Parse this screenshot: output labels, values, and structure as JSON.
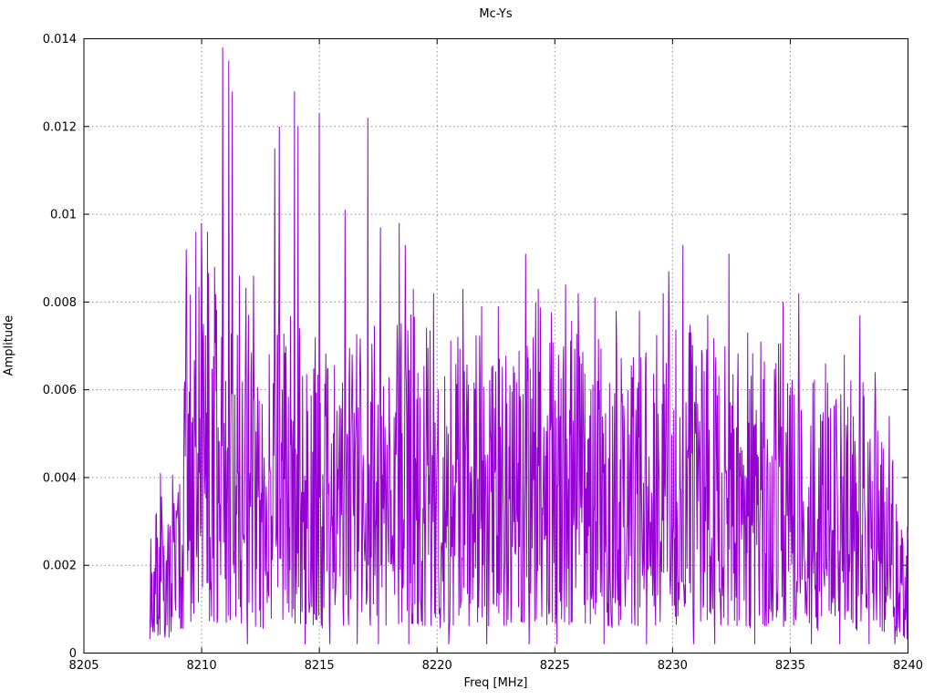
{
  "chart_data": {
    "type": "line",
    "title": "Mc-Ys",
    "xlabel": "Freq [MHz]",
    "ylabel": "Amplitude",
    "xlim": [
      8205,
      8240
    ],
    "ylim": [
      0,
      0.014
    ],
    "grid": true,
    "legend": "none",
    "line_color": "#9400d3",
    "grid_color": "#8c8c8c",
    "axis_color": "#000000",
    "background": "#ffffff",
    "xticks": [
      {
        "v": 8205,
        "label": "8205"
      },
      {
        "v": 8210,
        "label": "8210"
      },
      {
        "v": 8215,
        "label": "8215"
      },
      {
        "v": 8220,
        "label": "8220"
      },
      {
        "v": 8225,
        "label": "8225"
      },
      {
        "v": 8230,
        "label": "8230"
      },
      {
        "v": 8235,
        "label": "8235"
      },
      {
        "v": 8240,
        "label": "8240"
      }
    ],
    "yticks": [
      {
        "v": 0,
        "label": "0"
      },
      {
        "v": 0.002,
        "label": "0.002"
      },
      {
        "v": 0.004,
        "label": "0.004"
      },
      {
        "v": 0.006,
        "label": "0.006"
      },
      {
        "v": 0.008,
        "label": "0.008"
      },
      {
        "v": 0.01,
        "label": "0.01"
      },
      {
        "v": 0.012,
        "label": "0.012"
      },
      {
        "v": 0.014,
        "label": "0.014"
      }
    ],
    "series": [
      {
        "name": "Mc-Ys",
        "x_start": 8207.8,
        "x_end": 8240.0,
        "n_points": 1500,
        "seed": 20477,
        "noise_floor": 0.0002,
        "noise_base_frac": 0.08,
        "noise_exp": 1.35,
        "deep_dip_prob": 0.025,
        "envelope": [
          [
            8207.8,
            0.0026
          ],
          [
            8208.2,
            0.0042
          ],
          [
            8208.6,
            0.0034
          ],
          [
            8209.0,
            0.005
          ],
          [
            8209.4,
            0.008
          ],
          [
            8210.0,
            0.009
          ],
          [
            8210.6,
            0.0085
          ],
          [
            8211.4,
            0.008
          ],
          [
            8211.9,
            0.0086
          ],
          [
            8212.4,
            0.0062
          ],
          [
            8212.9,
            0.0072
          ],
          [
            8213.4,
            0.008
          ],
          [
            8214.2,
            0.0078
          ],
          [
            8215.0,
            0.0072
          ],
          [
            8215.6,
            0.0066
          ],
          [
            8216.3,
            0.0074
          ],
          [
            8217.2,
            0.0078
          ],
          [
            8218.2,
            0.0076
          ],
          [
            8219.2,
            0.0078
          ],
          [
            8220.2,
            0.007
          ],
          [
            8221.2,
            0.0074
          ],
          [
            8222.2,
            0.0072
          ],
          [
            8223.2,
            0.007
          ],
          [
            8224.2,
            0.008
          ],
          [
            8225.2,
            0.0078
          ],
          [
            8226.2,
            0.008
          ],
          [
            8227.2,
            0.007
          ],
          [
            8228.2,
            0.0072
          ],
          [
            8229.2,
            0.0072
          ],
          [
            8230.2,
            0.008
          ],
          [
            8231.2,
            0.0072
          ],
          [
            8232.2,
            0.0072
          ],
          [
            8233.2,
            0.0068
          ],
          [
            8234.2,
            0.007
          ],
          [
            8235.2,
            0.0072
          ],
          [
            8236.2,
            0.0062
          ],
          [
            8237.2,
            0.0062
          ],
          [
            8238.2,
            0.0064
          ],
          [
            8239.0,
            0.0052
          ],
          [
            8239.6,
            0.0042
          ],
          [
            8240.0,
            0.0036
          ]
        ],
        "peaks": [
          [
            8208.25,
            0.0041
          ],
          [
            8209.35,
            0.0092
          ],
          [
            8209.75,
            0.0096
          ],
          [
            8210.0,
            0.0098
          ],
          [
            8210.25,
            0.0096
          ],
          [
            8210.55,
            0.0088
          ],
          [
            8210.9,
            0.0138
          ],
          [
            8211.15,
            0.0135
          ],
          [
            8211.3,
            0.0128
          ],
          [
            8211.6,
            0.0086
          ],
          [
            8212.2,
            0.0086
          ],
          [
            8213.1,
            0.0115
          ],
          [
            8213.3,
            0.012
          ],
          [
            8213.95,
            0.0128
          ],
          [
            8214.1,
            0.012
          ],
          [
            8215.0,
            0.0123
          ],
          [
            8216.1,
            0.0101
          ],
          [
            8217.05,
            0.0122
          ],
          [
            8217.6,
            0.0097
          ],
          [
            8218.4,
            0.0098
          ],
          [
            8218.65,
            0.0093
          ],
          [
            8219.0,
            0.0083
          ],
          [
            8219.85,
            0.0082
          ],
          [
            8221.1,
            0.0083
          ],
          [
            8221.9,
            0.0079
          ],
          [
            8222.6,
            0.0079
          ],
          [
            8223.75,
            0.0091
          ],
          [
            8224.3,
            0.0083
          ],
          [
            8225.45,
            0.0084
          ],
          [
            8226.0,
            0.0082
          ],
          [
            8226.7,
            0.0081
          ],
          [
            8227.6,
            0.0078
          ],
          [
            8228.6,
            0.0078
          ],
          [
            8229.6,
            0.0082
          ],
          [
            8229.85,
            0.0087
          ],
          [
            8230.45,
            0.0093
          ],
          [
            8231.5,
            0.0077
          ],
          [
            8232.4,
            0.0091
          ],
          [
            8233.2,
            0.0073
          ],
          [
            8233.75,
            0.0071
          ],
          [
            8234.7,
            0.008
          ],
          [
            8235.35,
            0.0082
          ],
          [
            8236.5,
            0.0066
          ],
          [
            8237.3,
            0.0068
          ],
          [
            8237.95,
            0.0077
          ],
          [
            8238.6,
            0.0064
          ],
          [
            8239.2,
            0.0054
          ]
        ],
        "dips": [
          8211.95,
          8214.4,
          8215.45,
          8216.6,
          8217.5,
          8218.8,
          8220.5,
          8222.1,
          8223.9,
          8225.1,
          8227.1,
          8228.9,
          8230.9,
          8231.8,
          8233.5,
          8235.9,
          8237.1,
          8238.35,
          8239.45
        ]
      }
    ]
  }
}
